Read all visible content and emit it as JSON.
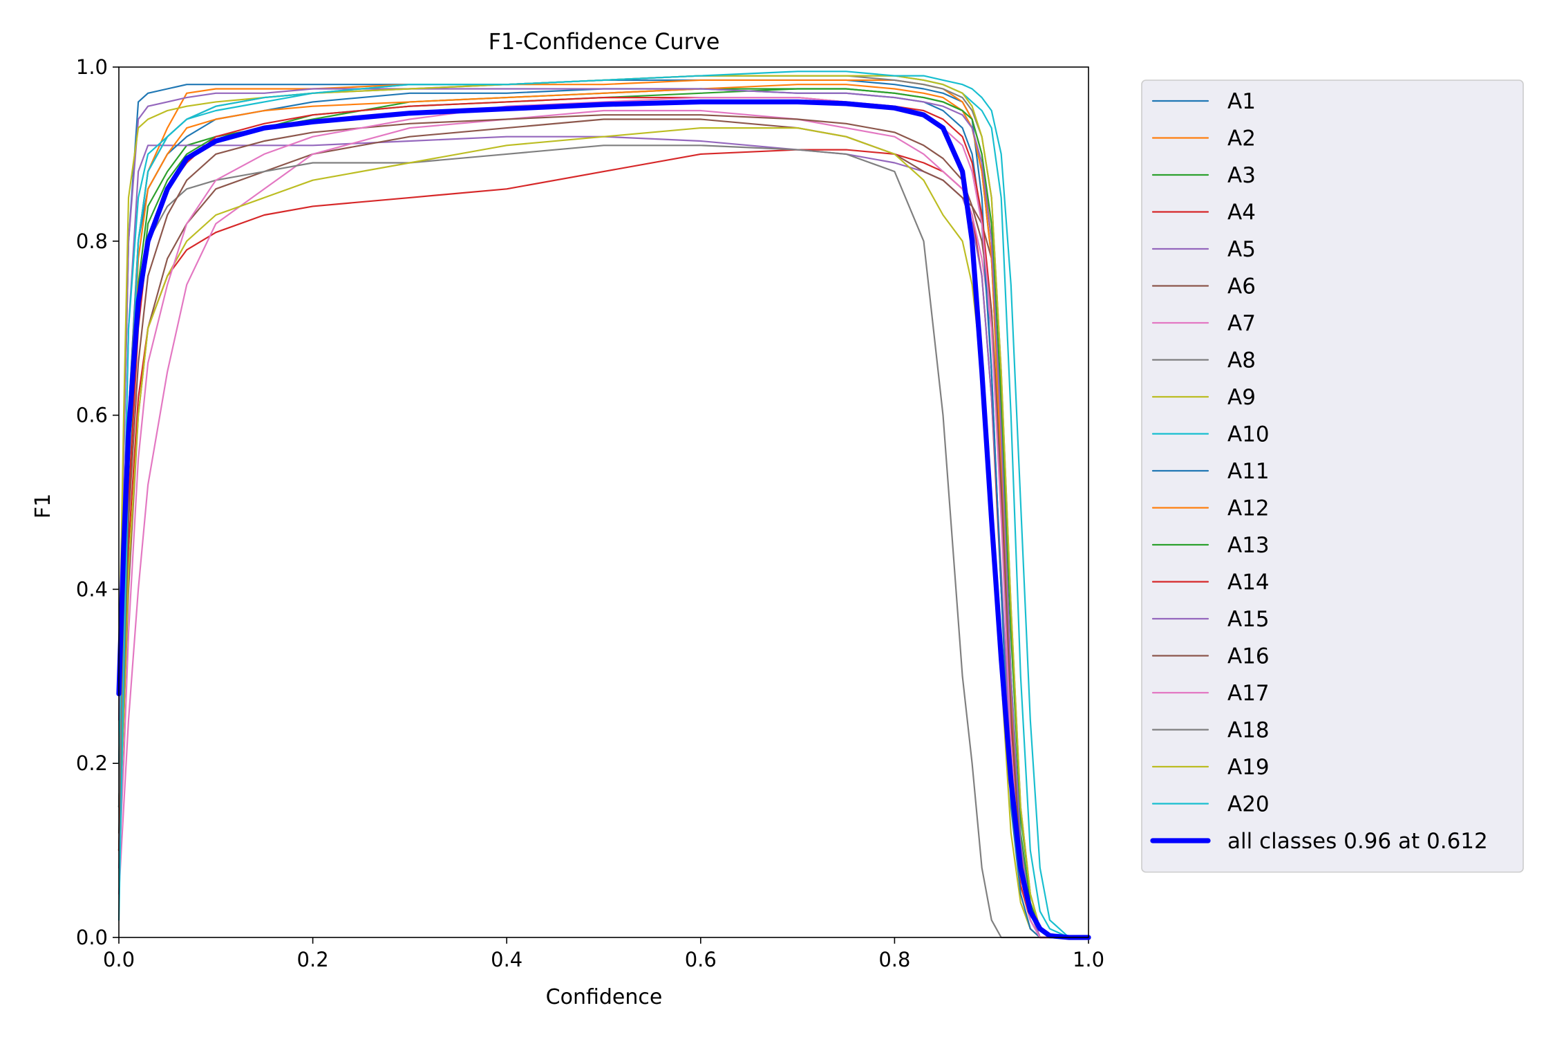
{
  "chart_data": {
    "type": "line",
    "title": "F1-Confidence Curve",
    "xlabel": "Confidence",
    "ylabel": "F1",
    "xlim": [
      0,
      1
    ],
    "ylim": [
      0,
      1
    ],
    "xticks": [
      "0.0",
      "0.2",
      "0.4",
      "0.6",
      "0.8",
      "1.0"
    ],
    "yticks": [
      "0.0",
      "0.2",
      "0.4",
      "0.6",
      "0.8",
      "1.0"
    ],
    "grid": false,
    "legend_position": "outside-right",
    "x": [
      0.0,
      0.005,
      0.01,
      0.02,
      0.03,
      0.05,
      0.07,
      0.1,
      0.15,
      0.2,
      0.3,
      0.4,
      0.5,
      0.6,
      0.7,
      0.75,
      0.8,
      0.83,
      0.85,
      0.87,
      0.88,
      0.89,
      0.9,
      0.91,
      0.92,
      0.93,
      0.94,
      0.95,
      0.96,
      0.98,
      1.0
    ],
    "series": [
      {
        "name": "A1",
        "color": "#1f77b4",
        "width": 1.5,
        "values": [
          0.3,
          0.55,
          0.8,
          0.96,
          0.97,
          0.975,
          0.98,
          0.98,
          0.98,
          0.98,
          0.98,
          0.98,
          0.985,
          0.985,
          0.985,
          0.985,
          0.98,
          0.975,
          0.97,
          0.96,
          0.94,
          0.85,
          0.65,
          0.4,
          0.2,
          0.08,
          0.03,
          0.01,
          0.0,
          0.0,
          0.0
        ]
      },
      {
        "name": "A2",
        "color": "#ff7f0e",
        "width": 1.5,
        "values": [
          0.2,
          0.4,
          0.6,
          0.8,
          0.88,
          0.93,
          0.97,
          0.975,
          0.975,
          0.975,
          0.98,
          0.98,
          0.98,
          0.985,
          0.985,
          0.985,
          0.985,
          0.98,
          0.975,
          0.96,
          0.94,
          0.9,
          0.8,
          0.5,
          0.2,
          0.05,
          0.01,
          0.0,
          0.0,
          0.0,
          0.0
        ]
      },
      {
        "name": "A3",
        "color": "#2ca02c",
        "width": 1.5,
        "values": [
          0.15,
          0.35,
          0.55,
          0.75,
          0.84,
          0.88,
          0.91,
          0.92,
          0.93,
          0.94,
          0.96,
          0.965,
          0.97,
          0.975,
          0.975,
          0.975,
          0.97,
          0.965,
          0.96,
          0.95,
          0.93,
          0.88,
          0.78,
          0.55,
          0.3,
          0.12,
          0.04,
          0.01,
          0.0,
          0.0,
          0.0
        ]
      },
      {
        "name": "A4",
        "color": "#d62728",
        "width": 1.5,
        "values": [
          0.1,
          0.25,
          0.45,
          0.62,
          0.7,
          0.76,
          0.79,
          0.81,
          0.83,
          0.84,
          0.85,
          0.86,
          0.88,
          0.9,
          0.905,
          0.905,
          0.9,
          0.89,
          0.88,
          0.86,
          0.83,
          0.76,
          0.62,
          0.4,
          0.18,
          0.06,
          0.02,
          0.0,
          0.0,
          0.0,
          0.0
        ]
      },
      {
        "name": "A5",
        "color": "#9467bd",
        "width": 1.5,
        "values": [
          0.2,
          0.45,
          0.7,
          0.88,
          0.91,
          0.91,
          0.91,
          0.91,
          0.91,
          0.91,
          0.915,
          0.92,
          0.92,
          0.915,
          0.905,
          0.9,
          0.89,
          0.88,
          0.87,
          0.85,
          0.82,
          0.76,
          0.62,
          0.42,
          0.2,
          0.07,
          0.02,
          0.0,
          0.0,
          0.0,
          0.0
        ]
      },
      {
        "name": "A6",
        "color": "#8c564b",
        "width": 1.5,
        "values": [
          0.1,
          0.25,
          0.4,
          0.6,
          0.7,
          0.78,
          0.82,
          0.86,
          0.88,
          0.9,
          0.92,
          0.93,
          0.94,
          0.94,
          0.93,
          0.92,
          0.9,
          0.88,
          0.87,
          0.85,
          0.84,
          0.82,
          0.78,
          0.6,
          0.3,
          0.1,
          0.03,
          0.0,
          0.0,
          0.0,
          0.0
        ]
      },
      {
        "name": "A7",
        "color": "#e377c2",
        "width": 1.5,
        "values": [
          0.05,
          0.15,
          0.25,
          0.4,
          0.52,
          0.65,
          0.75,
          0.82,
          0.86,
          0.9,
          0.93,
          0.94,
          0.95,
          0.95,
          0.94,
          0.93,
          0.92,
          0.9,
          0.88,
          0.86,
          0.83,
          0.78,
          0.7,
          0.5,
          0.25,
          0.08,
          0.02,
          0.0,
          0.0,
          0.0,
          0.0
        ]
      },
      {
        "name": "A8",
        "color": "#7f7f7f",
        "width": 1.5,
        "values": [
          0.15,
          0.35,
          0.55,
          0.72,
          0.8,
          0.84,
          0.86,
          0.87,
          0.88,
          0.89,
          0.89,
          0.9,
          0.91,
          0.91,
          0.905,
          0.9,
          0.88,
          0.8,
          0.6,
          0.3,
          0.2,
          0.08,
          0.02,
          0.0,
          0.0,
          0.0,
          0.0,
          0.0,
          0.0,
          0.0,
          0.0
        ]
      },
      {
        "name": "A9",
        "color": "#bcbd22",
        "width": 1.5,
        "values": [
          0.1,
          0.25,
          0.42,
          0.6,
          0.7,
          0.76,
          0.8,
          0.83,
          0.85,
          0.87,
          0.89,
          0.91,
          0.92,
          0.93,
          0.93,
          0.92,
          0.9,
          0.87,
          0.83,
          0.8,
          0.75,
          0.65,
          0.5,
          0.3,
          0.12,
          0.04,
          0.01,
          0.0,
          0.0,
          0.0,
          0.0
        ]
      },
      {
        "name": "A10",
        "color": "#17becf",
        "width": 1.5,
        "values": [
          0.2,
          0.45,
          0.7,
          0.85,
          0.9,
          0.92,
          0.94,
          0.95,
          0.96,
          0.97,
          0.98,
          0.98,
          0.985,
          0.99,
          0.99,
          0.99,
          0.99,
          0.985,
          0.98,
          0.97,
          0.96,
          0.95,
          0.93,
          0.85,
          0.6,
          0.3,
          0.1,
          0.03,
          0.01,
          0.0,
          0.0
        ]
      },
      {
        "name": "A11",
        "color": "#1f77b4",
        "width": 1.5,
        "values": [
          0.15,
          0.35,
          0.6,
          0.8,
          0.86,
          0.9,
          0.92,
          0.94,
          0.95,
          0.96,
          0.97,
          0.97,
          0.975,
          0.975,
          0.97,
          0.97,
          0.965,
          0.96,
          0.95,
          0.93,
          0.9,
          0.82,
          0.65,
          0.4,
          0.15,
          0.05,
          0.01,
          0.0,
          0.0,
          0.0,
          0.0
        ]
      },
      {
        "name": "A12",
        "color": "#ff7f0e",
        "width": 1.5,
        "values": [
          0.15,
          0.35,
          0.55,
          0.78,
          0.86,
          0.9,
          0.93,
          0.94,
          0.95,
          0.955,
          0.96,
          0.965,
          0.97,
          0.975,
          0.98,
          0.98,
          0.975,
          0.97,
          0.965,
          0.95,
          0.93,
          0.88,
          0.78,
          0.55,
          0.28,
          0.1,
          0.03,
          0.0,
          0.0,
          0.0,
          0.0
        ]
      },
      {
        "name": "A13",
        "color": "#2ca02c",
        "width": 1.5,
        "values": [
          0.1,
          0.3,
          0.5,
          0.72,
          0.82,
          0.87,
          0.9,
          0.92,
          0.93,
          0.945,
          0.955,
          0.96,
          0.965,
          0.97,
          0.975,
          0.975,
          0.97,
          0.965,
          0.96,
          0.95,
          0.94,
          0.9,
          0.82,
          0.62,
          0.35,
          0.14,
          0.05,
          0.01,
          0.0,
          0.0,
          0.0
        ]
      },
      {
        "name": "A14",
        "color": "#d62728",
        "width": 1.5,
        "values": [
          0.1,
          0.3,
          0.5,
          0.7,
          0.8,
          0.86,
          0.89,
          0.92,
          0.935,
          0.945,
          0.955,
          0.96,
          0.965,
          0.965,
          0.965,
          0.96,
          0.955,
          0.95,
          0.94,
          0.92,
          0.89,
          0.83,
          0.72,
          0.5,
          0.25,
          0.09,
          0.03,
          0.0,
          0.0,
          0.0,
          0.0
        ]
      },
      {
        "name": "A15",
        "color": "#9467bd",
        "width": 1.5,
        "values": [
          0.25,
          0.55,
          0.8,
          0.94,
          0.955,
          0.96,
          0.965,
          0.97,
          0.97,
          0.975,
          0.975,
          0.975,
          0.975,
          0.975,
          0.97,
          0.97,
          0.965,
          0.96,
          0.955,
          0.945,
          0.93,
          0.89,
          0.8,
          0.58,
          0.3,
          0.11,
          0.03,
          0.0,
          0.0,
          0.0,
          0.0
        ]
      },
      {
        "name": "A16",
        "color": "#8c564b",
        "width": 1.5,
        "values": [
          0.12,
          0.28,
          0.48,
          0.66,
          0.76,
          0.83,
          0.87,
          0.9,
          0.915,
          0.925,
          0.935,
          0.94,
          0.945,
          0.945,
          0.94,
          0.935,
          0.925,
          0.91,
          0.895,
          0.87,
          0.84,
          0.8,
          0.72,
          0.52,
          0.26,
          0.09,
          0.02,
          0.0,
          0.0,
          0.0,
          0.0
        ]
      },
      {
        "name": "A17",
        "color": "#e377c2",
        "width": 1.5,
        "values": [
          0.08,
          0.2,
          0.35,
          0.55,
          0.66,
          0.75,
          0.82,
          0.87,
          0.9,
          0.92,
          0.94,
          0.955,
          0.96,
          0.965,
          0.965,
          0.96,
          0.955,
          0.945,
          0.93,
          0.91,
          0.88,
          0.82,
          0.7,
          0.48,
          0.22,
          0.07,
          0.02,
          0.0,
          0.0,
          0.0,
          0.0
        ]
      },
      {
        "name": "A18",
        "color": "#7f7f7f",
        "width": 1.5,
        "values": [
          0.15,
          0.35,
          0.58,
          0.8,
          0.88,
          0.92,
          0.94,
          0.955,
          0.965,
          0.97,
          0.975,
          0.98,
          0.985,
          0.99,
          0.99,
          0.99,
          0.985,
          0.98,
          0.975,
          0.965,
          0.95,
          0.92,
          0.85,
          0.65,
          0.38,
          0.15,
          0.05,
          0.01,
          0.0,
          0.0,
          0.0
        ]
      },
      {
        "name": "A19",
        "color": "#bcbd22",
        "width": 1.5,
        "values": [
          0.3,
          0.6,
          0.85,
          0.93,
          0.94,
          0.95,
          0.955,
          0.96,
          0.965,
          0.97,
          0.975,
          0.98,
          0.985,
          0.99,
          0.99,
          0.99,
          0.99,
          0.985,
          0.98,
          0.97,
          0.955,
          0.92,
          0.85,
          0.65,
          0.38,
          0.15,
          0.05,
          0.01,
          0.0,
          0.0,
          0.0
        ]
      },
      {
        "name": "A20",
        "color": "#17becf",
        "width": 1.5,
        "values": [
          0.02,
          0.3,
          0.55,
          0.8,
          0.88,
          0.92,
          0.94,
          0.955,
          0.965,
          0.97,
          0.98,
          0.98,
          0.985,
          0.99,
          0.995,
          0.995,
          0.99,
          0.99,
          0.985,
          0.98,
          0.975,
          0.965,
          0.95,
          0.9,
          0.75,
          0.5,
          0.25,
          0.08,
          0.02,
          0.0,
          0.0
        ]
      },
      {
        "name": "all classes 0.96 at 0.612",
        "color": "#0000ff",
        "width": 5,
        "values": [
          0.28,
          0.45,
          0.58,
          0.73,
          0.8,
          0.86,
          0.895,
          0.915,
          0.93,
          0.937,
          0.947,
          0.952,
          0.957,
          0.96,
          0.96,
          0.958,
          0.953,
          0.945,
          0.93,
          0.88,
          0.8,
          0.65,
          0.48,
          0.32,
          0.18,
          0.08,
          0.03,
          0.01,
          0.002,
          0.0,
          0.0
        ]
      }
    ]
  }
}
